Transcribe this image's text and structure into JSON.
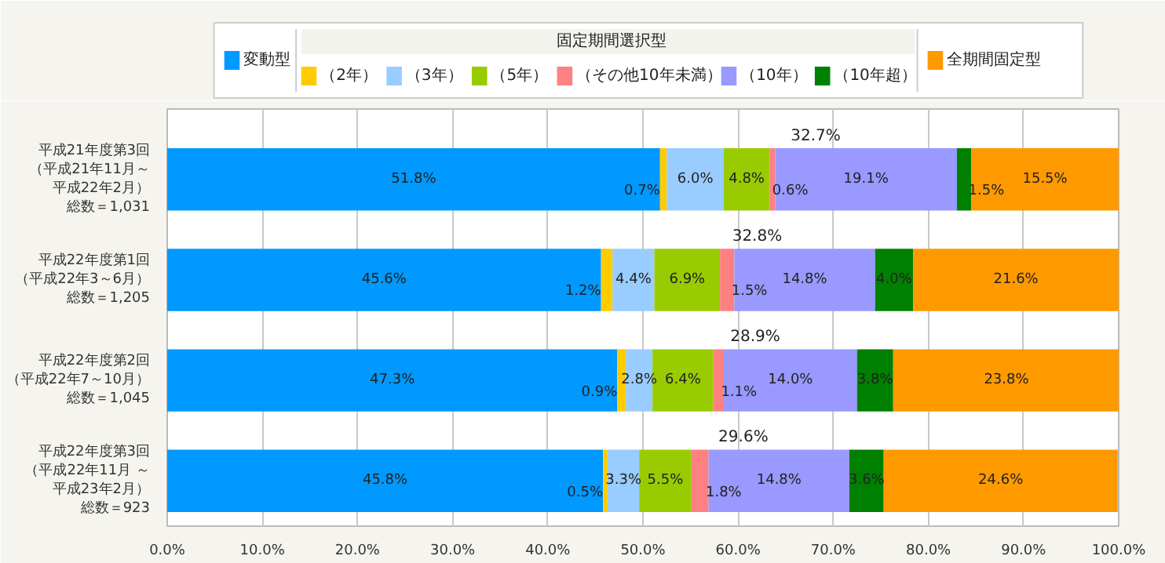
{
  "chart_data": {
    "type": "bar",
    "orientation": "horizontal",
    "stacked": true,
    "grid": "x",
    "legend": "top",
    "legend_title": "固定期間選択型",
    "categories": [
      "平成21年度第3回（平成21年11月～平成22年2月）総数＝1,031",
      "平成22年度第1回（平成22年3～6月）総数＝1,205",
      "平成22年度第2回（平成22年7～10月）総数＝1,045",
      "平成22年度第3回（平成22年11月 ～平成23年2月）総数＝923"
    ],
    "xlim": [
      0,
      100
    ],
    "xticks": [
      {
        "value": 0,
        "label": "0.0%"
      },
      {
        "value": 10,
        "label": "10.0%"
      },
      {
        "value": 20,
        "label": "20.0%"
      },
      {
        "value": 30,
        "label": "30.0%"
      },
      {
        "value": 40,
        "label": "40.0%"
      },
      {
        "value": 50,
        "label": "50.0%"
      },
      {
        "value": 60,
        "label": "60.0%"
      },
      {
        "value": 70,
        "label": "70.0%"
      },
      {
        "value": 80,
        "label": "80.0%"
      },
      {
        "value": 90,
        "label": "90.0%"
      },
      {
        "value": 100,
        "label": "100.0%"
      }
    ],
    "series": [
      {
        "name": "変動型",
        "color": "#0099ff",
        "values": [
          51.8,
          45.6,
          47.3,
          45.8
        ],
        "value_labels": [
          "51.8%",
          "45.6%",
          "47.3%",
          "45.8%"
        ]
      },
      {
        "name": "（2年）",
        "color": "#ffcc00",
        "values": [
          0.7,
          1.2,
          0.9,
          0.5
        ],
        "value_labels": [
          "0.7%",
          "1.2%",
          "0.9%",
          "0.5%"
        ]
      },
      {
        "name": "（3年）",
        "color": "#99ccff",
        "values": [
          6.0,
          4.4,
          2.8,
          3.3
        ],
        "value_labels": [
          "6.0%",
          "4.4%",
          "2.8%",
          "3.3%"
        ]
      },
      {
        "name": "（5年）",
        "color": "#99cc00",
        "values": [
          4.8,
          6.9,
          6.4,
          5.5
        ],
        "value_labels": [
          "4.8%",
          "6.9%",
          "6.4%",
          "5.5%"
        ]
      },
      {
        "name": "（その他10年未満）",
        "color": "#ff8080",
        "values": [
          0.6,
          1.5,
          1.1,
          1.8
        ],
        "value_labels": [
          "0.6%",
          "1.5%",
          "1.1%",
          "1.8%"
        ]
      },
      {
        "name": "（10年）",
        "color": "#9999ff",
        "values": [
          19.1,
          14.8,
          14.0,
          14.8
        ],
        "value_labels": [
          "19.1%",
          "14.8%",
          "14.0%",
          "14.8%"
        ]
      },
      {
        "name": "（10年超）",
        "color": "#008000",
        "values": [
          1.5,
          4.0,
          3.8,
          3.6
        ],
        "value_labels": [
          "1.5%",
          "4.0%",
          "3.8%",
          "3.6%"
        ]
      },
      {
        "name": "全期間固定型",
        "color": "#ff9900",
        "values": [
          15.5,
          21.6,
          23.8,
          24.6
        ],
        "value_labels": [
          "15.5%",
          "21.6%",
          "23.8%",
          "24.6%"
        ]
      }
    ],
    "annotations": [
      "32.7%",
      "32.8%",
      "28.9%",
      "29.6%"
    ]
  }
}
